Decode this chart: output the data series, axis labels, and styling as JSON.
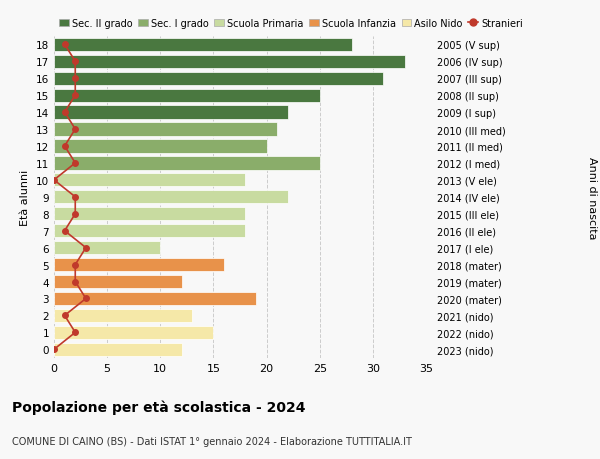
{
  "ages": [
    0,
    1,
    2,
    3,
    4,
    5,
    6,
    7,
    8,
    9,
    10,
    11,
    12,
    13,
    14,
    15,
    16,
    17,
    18
  ],
  "bar_values": [
    12,
    15,
    13,
    19,
    12,
    16,
    10,
    18,
    18,
    22,
    18,
    25,
    20,
    21,
    22,
    25,
    31,
    33,
    28
  ],
  "right_labels": [
    "2023 (nido)",
    "2022 (nido)",
    "2021 (nido)",
    "2020 (mater)",
    "2019 (mater)",
    "2018 (mater)",
    "2017 (I ele)",
    "2016 (II ele)",
    "2015 (III ele)",
    "2014 (IV ele)",
    "2013 (V ele)",
    "2012 (I med)",
    "2011 (II med)",
    "2010 (III med)",
    "2009 (I sup)",
    "2008 (II sup)",
    "2007 (III sup)",
    "2006 (IV sup)",
    "2005 (V sup)"
  ],
  "bar_colors": [
    "#f5e8a8",
    "#f5e8a8",
    "#f5e8a8",
    "#e8924a",
    "#e8924a",
    "#e8924a",
    "#c8dba0",
    "#c8dba0",
    "#c8dba0",
    "#c8dba0",
    "#c8dba0",
    "#8aad6a",
    "#8aad6a",
    "#8aad6a",
    "#4a7840",
    "#4a7840",
    "#4a7840",
    "#4a7840",
    "#4a7840"
  ],
  "stranieri_values": [
    0,
    2,
    1,
    3,
    2,
    2,
    3,
    1,
    2,
    2,
    0,
    2,
    1,
    2,
    1,
    2,
    2,
    2,
    1
  ],
  "xlim": [
    0,
    35
  ],
  "ylim": [
    -0.5,
    18.5
  ],
  "title": "Popolazione per età scolastica - 2024",
  "subtitle": "COMUNE DI CAINO (BS) - Dati ISTAT 1° gennaio 2024 - Elaborazione TUTTITALIA.IT",
  "ylabel": "Età alunni",
  "right_ylabel": "Anni di nascita",
  "legend_labels": [
    "Sec. II grado",
    "Sec. I grado",
    "Scuola Primaria",
    "Scuola Infanzia",
    "Asilo Nido",
    "Stranieri"
  ],
  "legend_colors": [
    "#4a7840",
    "#8aad6a",
    "#c8dba0",
    "#e8924a",
    "#f5e8a8",
    "#c0392b"
  ],
  "stranieri_color": "#c0392b",
  "grid_color": "#cccccc",
  "bg_color": "#f8f8f8"
}
